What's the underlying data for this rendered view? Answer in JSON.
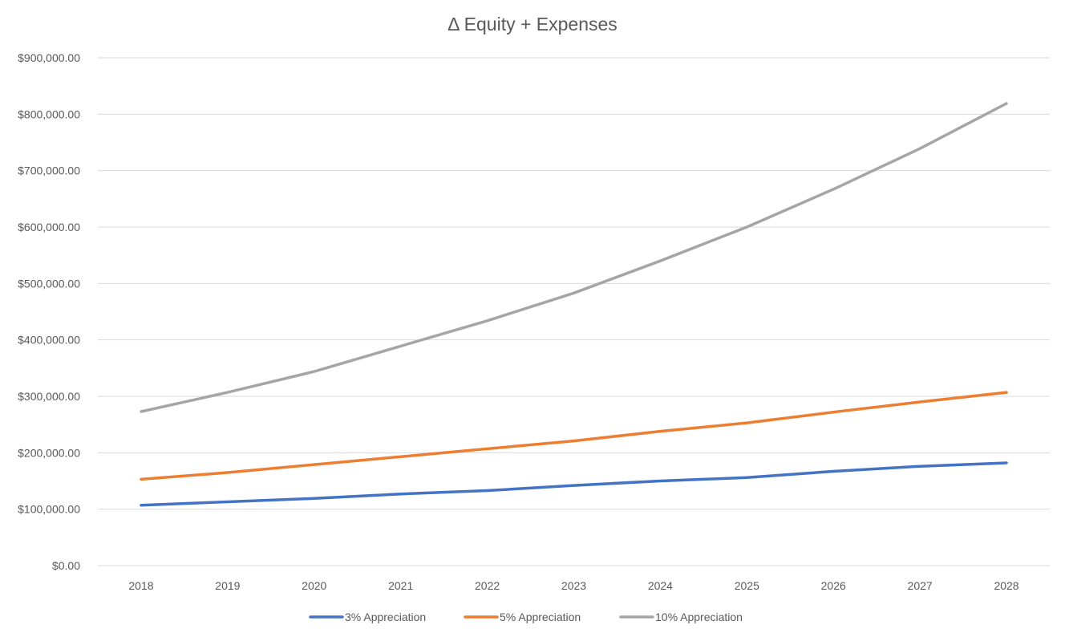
{
  "chart_data": {
    "type": "line",
    "title": "Δ Equity + Expenses",
    "xlabel": "",
    "ylabel": "",
    "categories": [
      "2018",
      "2019",
      "2020",
      "2021",
      "2022",
      "2023",
      "2024",
      "2025",
      "2026",
      "2027",
      "2028"
    ],
    "ylim": [
      0,
      900000
    ],
    "yticks": [
      0,
      100000,
      200000,
      300000,
      400000,
      500000,
      600000,
      700000,
      800000,
      900000
    ],
    "ytick_labels": [
      "$0.00",
      "$100,000.00",
      "$200,000.00",
      "$300,000.00",
      "$400,000.00",
      "$500,000.00",
      "$600,000.00",
      "$700,000.00",
      "$800,000.00",
      "$900,000.00"
    ],
    "grid": true,
    "legend_position": "bottom",
    "series": [
      {
        "name": "3% Appreciation",
        "color": "#4472c4",
        "values": [
          107000,
          113000,
          119000,
          127000,
          133000,
          142000,
          150000,
          156000,
          167000,
          176000,
          182000
        ]
      },
      {
        "name": "5% Appreciation",
        "color": "#ed7d31",
        "values": [
          153000,
          165000,
          179000,
          193000,
          207000,
          221000,
          238000,
          253000,
          272000,
          290000,
          307000
        ]
      },
      {
        "name": "10% Appreciation",
        "color": "#a5a5a5",
        "values": [
          273000,
          307000,
          344000,
          389000,
          434000,
          483000,
          540000,
          600000,
          667000,
          739000,
          819000
        ]
      }
    ]
  }
}
